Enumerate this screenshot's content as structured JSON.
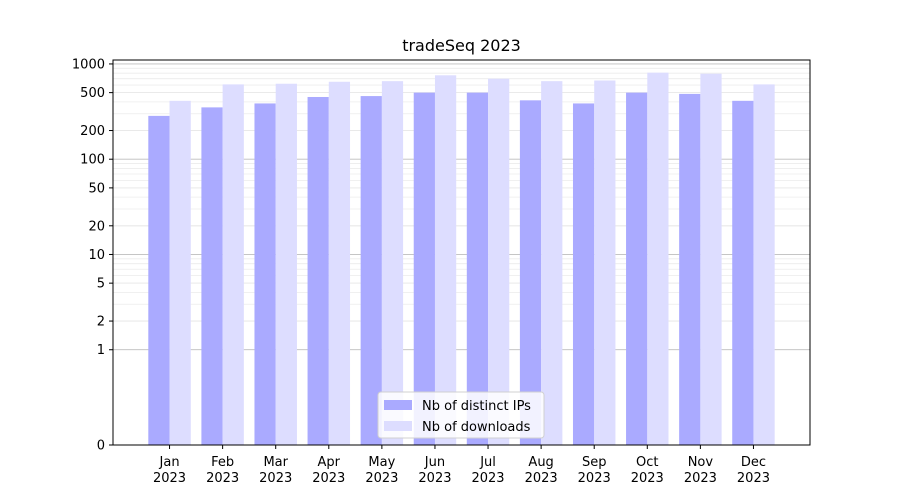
{
  "chart_data": {
    "type": "bar",
    "title": "tradeSeq 2023",
    "xlabel": "",
    "ylabel": "",
    "scale": "symlog",
    "ylim": [
      0,
      1100
    ],
    "yticks": [
      0,
      1,
      2,
      5,
      10,
      20,
      50,
      100,
      200,
      500,
      1000
    ],
    "grid": true,
    "legend_position": "bottom-center",
    "categories": [
      [
        "Jan",
        "2023"
      ],
      [
        "Feb",
        "2023"
      ],
      [
        "Mar",
        "2023"
      ],
      [
        "Apr",
        "2023"
      ],
      [
        "May",
        "2023"
      ],
      [
        "Jun",
        "2023"
      ],
      [
        "Jul",
        "2023"
      ],
      [
        "Aug",
        "2023"
      ],
      [
        "Sep",
        "2023"
      ],
      [
        "Oct",
        "2023"
      ],
      [
        "Nov",
        "2023"
      ],
      [
        "Dec",
        "2023"
      ]
    ],
    "series": [
      {
        "name": "Nb of distinct IPs",
        "color": "#aaaaff",
        "values": [
          285,
          350,
          385,
          450,
          460,
          500,
          500,
          415,
          385,
          500,
          485,
          410
        ]
      },
      {
        "name": "Nb of downloads",
        "color": "#ddddff",
        "values": [
          410,
          610,
          620,
          650,
          660,
          760,
          700,
          660,
          670,
          810,
          790,
          610
        ]
      }
    ]
  }
}
